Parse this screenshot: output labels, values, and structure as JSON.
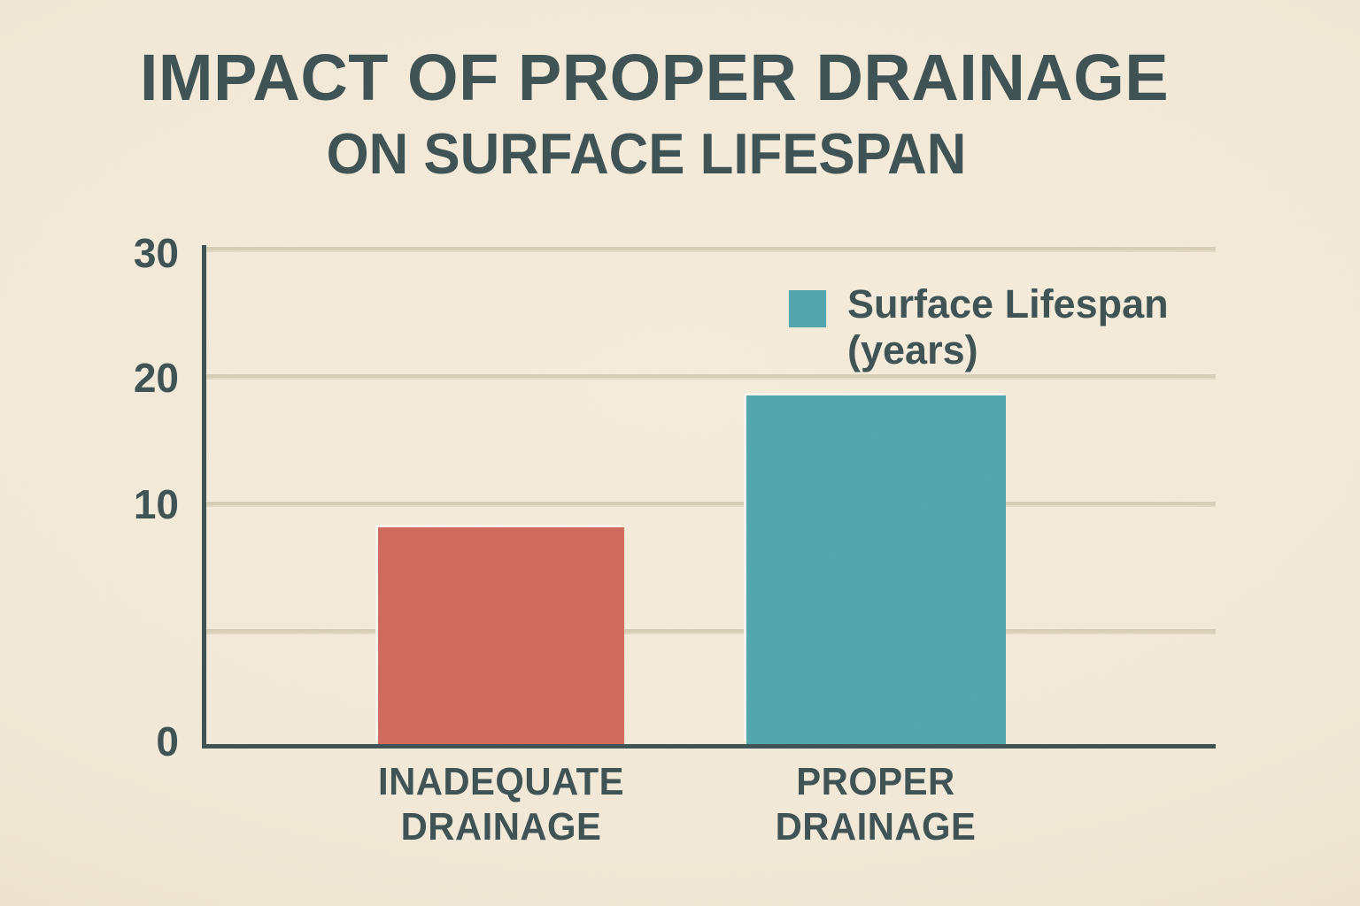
{
  "title": {
    "line1": "IMPACT OF PROPER DRAINAGE",
    "line2": "ON SURFACE LIFESPAN"
  },
  "legend": {
    "line1": "Surface Lifespan",
    "line2": "(years)",
    "swatch_color": "#52a7ac"
  },
  "y_axis": {
    "tick_labels": [
      "30",
      "20",
      "10",
      "0"
    ]
  },
  "x_axis": {
    "categories": [
      {
        "line1": "INADEQUATE",
        "line2": "DRAINAGE"
      },
      {
        "line1": "PROPER",
        "line2": "DRAINAGE"
      }
    ]
  },
  "chart_data": {
    "type": "bar",
    "title": "IMPACT OF PROPER DRAINAGE ON SURFACE LIFESPAN",
    "categories": [
      "INADEQUATE DRAINAGE",
      "PROPER DRAINAGE"
    ],
    "series": [
      {
        "name": "Surface Lifespan (years)",
        "values": [
          9,
          18.5
        ]
      }
    ],
    "xlabel": "",
    "ylabel": "",
    "ylim": [
      0,
      30
    ],
    "yticks": [
      0,
      10,
      20,
      30
    ],
    "bar_colors": [
      "#d0695e",
      "#52a7ac"
    ],
    "grid": true,
    "legend_position": "upper-right",
    "background_color": "#f3e9d8",
    "text_color": "#3e5254",
    "gridline_color": "#d8cfba"
  }
}
